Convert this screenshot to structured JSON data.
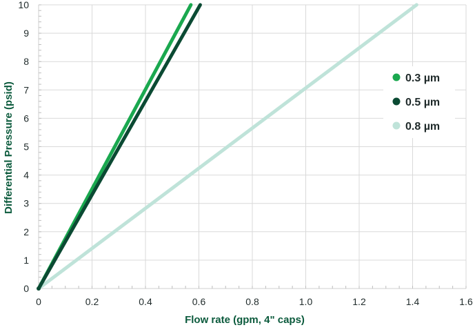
{
  "chart_data": {
    "type": "line",
    "xlabel": "Flow rate (gpm, 4\" caps)",
    "ylabel": "Differential Pressure (psid)",
    "xlim": [
      0,
      1.6
    ],
    "ylim": [
      0,
      10
    ],
    "x_ticks": [
      "0",
      "0.2",
      "0.4",
      "0.6",
      "0.8",
      "1.0",
      "1.2",
      "1.4",
      "1.6"
    ],
    "y_ticks": [
      "0",
      "1",
      "2",
      "3",
      "4",
      "5",
      "6",
      "7",
      "8",
      "9",
      "10"
    ],
    "grid": true,
    "legend_position": "right",
    "series": [
      {
        "name": "0.3 µm",
        "color": "#1aa84f",
        "x": [
          0,
          0.57
        ],
        "y": [
          0,
          10
        ]
      },
      {
        "name": "0.5 µm",
        "color": "#0b4a33",
        "x": [
          0,
          0.605
        ],
        "y": [
          0,
          10
        ]
      },
      {
        "name": "0.8 µm",
        "color": "#bfe3d9",
        "x": [
          0,
          1.415
        ],
        "y": [
          0,
          10
        ]
      }
    ],
    "colors": {
      "axis_title": "#0b5a3c",
      "grid": "#d9d9d9",
      "tick_label": "#1f2a2a"
    }
  }
}
